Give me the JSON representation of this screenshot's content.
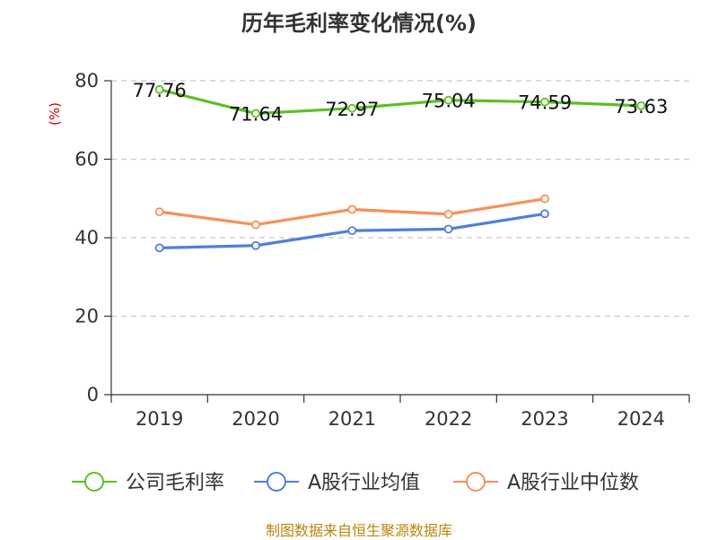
{
  "chart_data": {
    "type": "line",
    "title": "历年毛利率变化情况(%)",
    "ylabel": "(%)",
    "categories": [
      "2019",
      "2020",
      "2021",
      "2022",
      "2023",
      "2024"
    ],
    "ylim": [
      0,
      80
    ],
    "yticks": [
      0,
      20,
      40,
      60,
      80
    ],
    "grid": true,
    "legend_position": "bottom",
    "series": [
      {
        "name": "公司毛利率",
        "color": "#5cc024",
        "values": [
          77.76,
          71.64,
          72.97,
          75.04,
          74.59,
          73.63
        ],
        "labels": [
          "77.76",
          "71.64",
          "72.97",
          "75.04",
          "74.59",
          "73.63"
        ]
      },
      {
        "name": "A股行业均值",
        "color": "#4f7fdb",
        "values": [
          37.4,
          38.0,
          41.8,
          42.2,
          46.1,
          null
        ]
      },
      {
        "name": "A股行业中位数",
        "color": "#f79056",
        "values": [
          46.6,
          43.3,
          47.2,
          46.0,
          49.9,
          null
        ]
      }
    ]
  },
  "footer": {
    "source": "制图数据来自恒生聚源数据库"
  }
}
